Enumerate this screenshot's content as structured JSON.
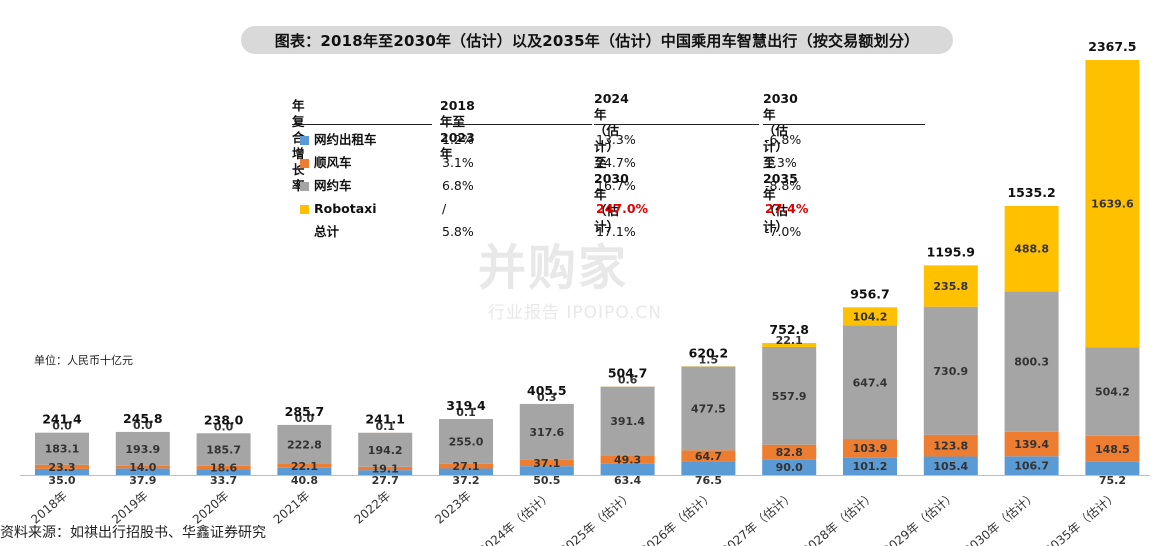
{
  "title": "图表：2018年至2030年（估计）以及2035年（估计）中国乘用车智慧出行（按交易额划分）",
  "unit_label": "单位：人民币十亿元",
  "source": "资料来源：如祺出行招股书、华鑫证券研究",
  "watermark": {
    "brand": "并购家",
    "sub": "行业报告 IPOIPO.CN"
  },
  "cagr_table": {
    "headers": [
      "年复合增长率",
      "2018年至2023年",
      "2024年（估计）\n至2030年（估计）",
      "2030年（估计）\n至2035年（估计）"
    ],
    "rows": [
      {
        "label": "网约出租车",
        "color": "#5b9bd5",
        "values": [
          "1.2%",
          "13.3%",
          "-6.8%"
        ],
        "highlight": [
          false,
          false,
          false
        ]
      },
      {
        "label": "顺风车",
        "color": "#ed7d31",
        "values": [
          "3.1%",
          "24.7%",
          "1.3%"
        ],
        "highlight": [
          false,
          false,
          false
        ]
      },
      {
        "label": "网约车",
        "color": "#a5a5a5",
        "values": [
          "6.8%",
          "16.7%",
          "-8.8%"
        ],
        "highlight": [
          false,
          false,
          false
        ]
      },
      {
        "label": "Robotaxi",
        "color": "#ffc000",
        "values": [
          "/",
          "247.0%",
          "27.4%"
        ],
        "highlight": [
          false,
          true,
          true
        ]
      },
      {
        "label": "总计",
        "color": "",
        "values": [
          "5.8%",
          "17.1%",
          "-7.0%"
        ],
        "highlight": [
          false,
          false,
          false
        ]
      }
    ],
    "highlight_color": "#e00000"
  },
  "chart_data": {
    "type": "bar",
    "stacked": true,
    "categories": [
      "2018年",
      "2019年",
      "2020年",
      "2021年",
      "2022年",
      "2023年",
      "2024年（估计）",
      "2025年（估计）",
      "2026年（估计）",
      "2027年（估计）",
      "2028年（估计）",
      "2029年（估计）",
      "2030年（估计）",
      "2035年（估计）"
    ],
    "series": [
      {
        "name": "网约出租车",
        "color": "#5b9bd5",
        "values": [
          35.0,
          37.9,
          33.7,
          40.8,
          27.7,
          37.2,
          50.5,
          63.4,
          76.5,
          90.0,
          101.2,
          105.4,
          106.7,
          75.2
        ]
      },
      {
        "name": "顺风车",
        "color": "#ed7d31",
        "values": [
          23.3,
          14.0,
          18.6,
          22.1,
          19.1,
          27.1,
          37.1,
          49.3,
          64.7,
          82.8,
          103.9,
          123.8,
          139.4,
          148.5
        ]
      },
      {
        "name": "网约车",
        "color": "#a5a5a5",
        "values": [
          183.1,
          193.9,
          185.7,
          222.8,
          194.2,
          255.0,
          317.6,
          391.4,
          477.5,
          557.9,
          647.4,
          730.9,
          800.3,
          504.2
        ]
      },
      {
        "name": "Robotaxi",
        "color": "#ffc000",
        "values": [
          0.0,
          0.0,
          0.0,
          0.0,
          0.1,
          0.1,
          0.3,
          0.6,
          1.5,
          22.1,
          104.2,
          235.8,
          488.8,
          1639.6
        ]
      }
    ],
    "totals": [
      241.4,
      245.8,
      238.0,
      285.7,
      241.1,
      319.4,
      405.5,
      504.7,
      620.2,
      752.8,
      956.7,
      1195.9,
      1535.2,
      2367.5
    ],
    "ylim": [
      0,
      2367.5
    ],
    "grid": false,
    "legend": "table"
  }
}
